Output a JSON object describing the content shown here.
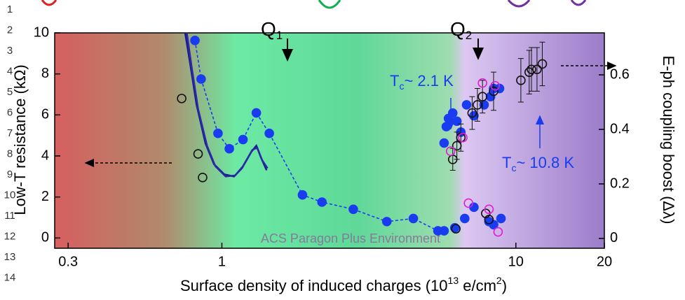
{
  "chart_data": {
    "type": "scatter",
    "xscale": "log",
    "xlabel": [
      "Surface density of induced charges (10",
      "13",
      " e/cm",
      "2",
      ")"
    ],
    "ylabel": "Low-T resistance (kΩ)",
    "y2label": "E-ph coupling boost (Δλ)",
    "xlim": [
      0.27,
      20
    ],
    "ylim": [
      -0.5,
      10
    ],
    "y2lim": [
      -0.036,
      0.754
    ],
    "xticks": [
      0.3,
      1,
      10,
      20
    ],
    "yticks": [
      0,
      2,
      4,
      6,
      8,
      10
    ],
    "y2ticks": [
      0,
      0.2,
      0.4,
      0.6
    ],
    "annotations": [
      {
        "text": "Q",
        "sub": "1"
      },
      {
        "text": "Q",
        "sub": "2"
      },
      {
        "text": "T",
        "sub": "c",
        "rest": "~ 2.1 K"
      },
      {
        "text": "T",
        "sub": "c",
        "rest": "~ 10.8 K"
      }
    ],
    "watermark": "ACS Paragon Plus Environment",
    "line_numbers": [
      1,
      2,
      3,
      4,
      5,
      6,
      7,
      8,
      9,
      10,
      11,
      12,
      13,
      14
    ],
    "series": [
      {
        "color": "#1a3cf0",
        "marker": "filled",
        "line": "dashed",
        "axis": "y",
        "x": [
          0.81,
          0.85,
          0.97,
          1.06,
          1.18,
          1.31,
          1.45,
          1.88,
          2.19,
          2.8,
          3.64,
          4.48,
          5.43
        ],
        "values": [
          9.63,
          7.75,
          5.1,
          4.35,
          4.8,
          6.1,
          5.1,
          2.1,
          1.75,
          1.4,
          0.8,
          0.95,
          0.35
        ]
      },
      {
        "color": "#1a3cf0",
        "marker": "filled",
        "axis": "y",
        "x": [
          5.7,
          6.2,
          6.7,
          7.2,
          8.1,
          8.4,
          8.9
        ],
        "values": [
          0.35,
          0.5,
          0.95,
          1.5,
          0.8,
          0.65,
          0.95
        ]
      },
      {
        "color": "#1a3cf0",
        "marker": "filled",
        "axis": "y2",
        "x": [
          5.7,
          5.8,
          5.9,
          6.1,
          6.3,
          6.5,
          6.8,
          7.2,
          7.8,
          8.2,
          8.4,
          8.8
        ],
        "values": [
          0.35,
          0.41,
          0.44,
          0.46,
          0.43,
          0.39,
          0.49,
          0.45,
          0.49,
          0.52,
          0.55,
          0.55
        ]
      },
      {
        "color": "#111111",
        "marker": "open",
        "axis": "y",
        "x": [
          0.73,
          0.83,
          0.86,
          6.25,
          7.9,
          8.1
        ],
        "values": [
          6.8,
          4.1,
          2.95,
          0.45,
          1.2,
          0.9
        ]
      },
      {
        "color": "#111111",
        "marker": "open",
        "axis": "y2",
        "x": [
          6.1,
          6.3,
          6.5,
          7.1,
          7.4,
          7.7,
          8.4,
          10.4,
          11.1,
          11.3,
          11.8,
          12.3
        ],
        "values": [
          0.29,
          0.34,
          0.37,
          0.46,
          0.49,
          0.52,
          0.54,
          0.58,
          0.61,
          0.62,
          0.62,
          0.64
        ],
        "errors": [
          0.04,
          0.05,
          0.05,
          0.06,
          0.06,
          0.06,
          0.07,
          0.08,
          0.08,
          0.08,
          0.08,
          0.08
        ]
      },
      {
        "color": "#e020d0",
        "marker": "open",
        "axis": "y2",
        "x": [
          6.0,
          6.6,
          7.7,
          8.5
        ],
        "values": [
          0.32,
          0.37,
          0.57,
          0.56
        ]
      },
      {
        "color": "#e020d0",
        "marker": "open",
        "axis": "y",
        "x": [
          6.9,
          8.1,
          8.7
        ],
        "values": [
          1.7,
          1.4,
          0.3
        ]
      },
      {
        "color": "#1a1a8c",
        "line": "solid",
        "axis": "y",
        "x": [
          0.75,
          0.78,
          0.82,
          0.88,
          0.94,
          1.02,
          1.1,
          1.17,
          1.26,
          1.31,
          1.36,
          1.42
        ],
        "values": [
          10,
          8.5,
          6.5,
          4.6,
          3.6,
          3.1,
          3.0,
          3.4,
          4.2,
          4.5,
          3.9,
          3.3
        ]
      },
      {
        "color": "#2a2aa8",
        "line": "solid",
        "axis": "y",
        "x": [
          0.76,
          0.79,
          0.83,
          0.89,
          0.95,
          1.03,
          1.11,
          1.18,
          1.27,
          1.32,
          1.37,
          1.43
        ],
        "values": [
          10,
          8.3,
          6.3,
          4.5,
          3.5,
          3.0,
          3.05,
          3.5,
          4.3,
          4.4,
          3.8,
          3.4
        ]
      }
    ]
  }
}
